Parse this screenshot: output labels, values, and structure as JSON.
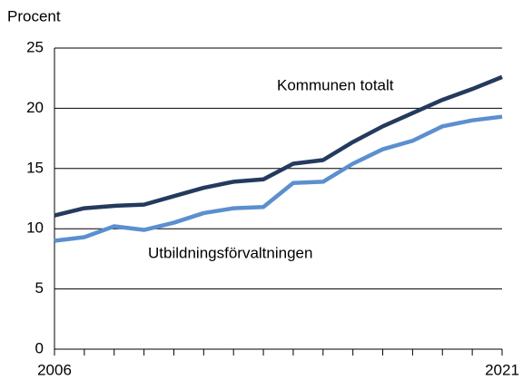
{
  "chart_data": {
    "type": "line",
    "y_label": "Procent",
    "x": [
      2006,
      2007,
      2008,
      2009,
      2010,
      2011,
      2012,
      2013,
      2014,
      2015,
      2016,
      2017,
      2018,
      2019,
      2020,
      2021
    ],
    "series": [
      {
        "name": "Kommunen totalt",
        "color": "#243a5e",
        "values": [
          11.1,
          11.7,
          11.9,
          12.0,
          12.7,
          13.4,
          13.9,
          14.1,
          15.4,
          15.7,
          17.2,
          18.5,
          19.6,
          20.7,
          21.6,
          22.6
        ]
      },
      {
        "name": "Utbildningsförvaltningen",
        "color": "#5b8fcf",
        "values": [
          9.0,
          9.3,
          10.2,
          9.9,
          10.5,
          11.3,
          11.7,
          11.8,
          13.8,
          13.9,
          15.4,
          16.6,
          17.3,
          18.5,
          19.0,
          19.3
        ]
      }
    ],
    "xlim": [
      2006,
      2021
    ],
    "xticks": [
      2006,
      2021
    ],
    "ylim": [
      0,
      25
    ],
    "yticks": [
      0,
      5,
      10,
      15,
      20,
      25
    ],
    "grid": true
  }
}
